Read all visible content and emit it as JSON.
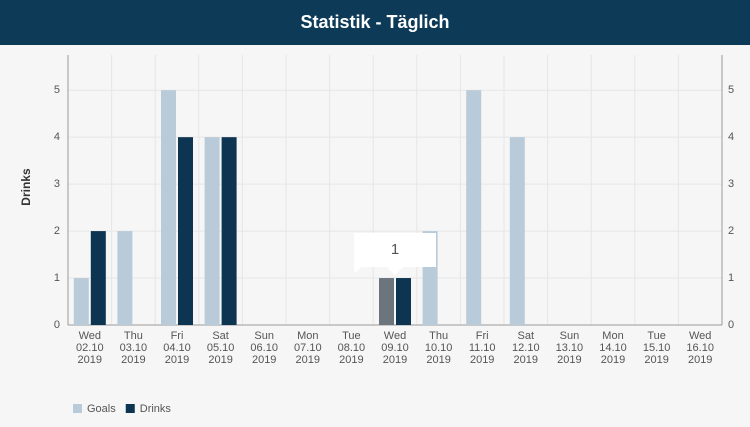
{
  "header": {
    "title": "Statistik - Täglich"
  },
  "chart_data": {
    "type": "bar",
    "y_label": "Drinks",
    "categories": [
      [
        "Wed",
        "02.10",
        "2019"
      ],
      [
        "Thu",
        "03.10",
        "2019"
      ],
      [
        "Fri",
        "04.10",
        "2019"
      ],
      [
        "Sat",
        "05.10",
        "2019"
      ],
      [
        "Sun",
        "06.10",
        "2019"
      ],
      [
        "Mon",
        "07.10",
        "2019"
      ],
      [
        "Tue",
        "08.10",
        "2019"
      ],
      [
        "Wed",
        "09.10",
        "2019"
      ],
      [
        "Thu",
        "10.10",
        "2019"
      ],
      [
        "Fri",
        "11.10",
        "2019"
      ],
      [
        "Sat",
        "12.10",
        "2019"
      ],
      [
        "Sun",
        "13.10",
        "2019"
      ],
      [
        "Mon",
        "14.10",
        "2019"
      ],
      [
        "Tue",
        "15.10",
        "2019"
      ],
      [
        "Wed",
        "16.10",
        "2019"
      ]
    ],
    "series": [
      {
        "name": "Goals",
        "color": "#b9cbd9",
        "values": [
          1,
          2,
          5,
          4,
          0,
          0,
          0,
          1,
          2,
          5,
          4,
          0,
          0,
          0,
          0
        ]
      },
      {
        "name": "Drinks",
        "color": "#0d3450",
        "values": [
          2,
          0,
          4,
          4,
          0,
          0,
          0,
          1,
          0,
          0,
          0,
          0,
          0,
          0,
          0
        ]
      }
    ],
    "highlight_index": 7,
    "highlight_color": "#6c757c",
    "ylim": [
      0,
      5.75
    ],
    "yticks": [
      0,
      1,
      2,
      3,
      4,
      5
    ],
    "grid": true,
    "legend": "bottom-left"
  }
}
